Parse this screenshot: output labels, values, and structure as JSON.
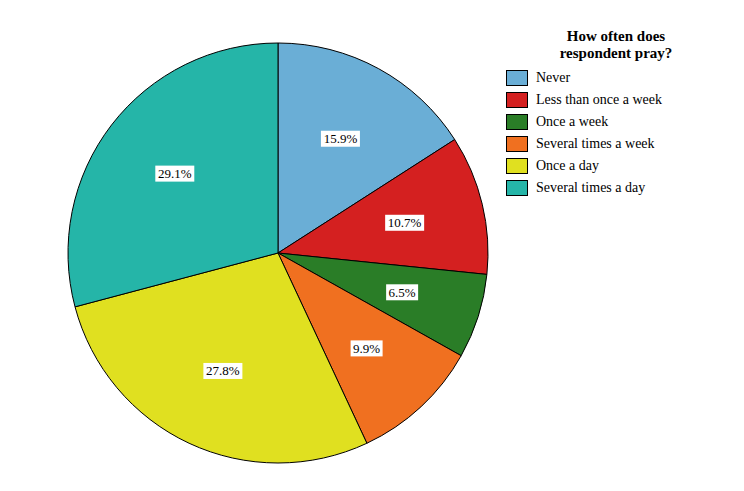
{
  "chart_data": {
    "type": "pie",
    "title": "How often does\nrespondent pray?",
    "categories": [
      "Never",
      "Less than once a week",
      "Once a week",
      "Several times a week",
      "Once a day",
      "Several times a day"
    ],
    "values": [
      15.9,
      10.7,
      6.5,
      9.9,
      27.8,
      29.1
    ],
    "value_labels": [
      "15.9%",
      "10.7%",
      "6.5%",
      "9.9%",
      "27.8%",
      "29.1%"
    ],
    "colors": [
      "#6aaed6",
      "#d42020",
      "#2a7d27",
      "#f07020",
      "#e0e020",
      "#25b5a8"
    ],
    "data_labels": true,
    "legend": "right"
  }
}
